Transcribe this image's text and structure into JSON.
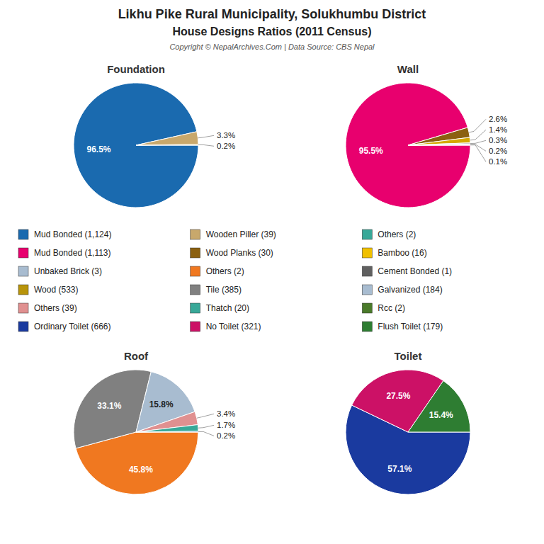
{
  "title": "Likhu Pike Rural Municipality, Solukhumbu District",
  "subtitle": "House Designs Ratios (2011 Census)",
  "annotations": [
    "Copyright © NepalArchives.Com | Data Source: CBS Nepal"
  ],
  "legend_items": [
    {
      "label": "Mud Bonded (1,124)",
      "color": "#1a6aaf"
    },
    {
      "label": "Wooden Piller (39)",
      "color": "#c8a86c"
    },
    {
      "label": "Others (2)",
      "color": "#38a898"
    },
    {
      "label": "Mud Bonded (1,113)",
      "color": "#e8006e"
    },
    {
      "label": "Wood Planks (30)",
      "color": "#8b6010"
    },
    {
      "label": "Bamboo (16)",
      "color": "#f0c000"
    },
    {
      "label": "Unbaked Brick (3)",
      "color": "#a8bcd0"
    },
    {
      "label": "Others (2)",
      "color": "#f07820"
    },
    {
      "label": "Cement Bonded (1)",
      "color": "#606060"
    },
    {
      "label": "Wood (533)",
      "color": "#b8940a"
    },
    {
      "label": "Tile (385)",
      "color": "#808080"
    },
    {
      "label": "Galvanized (184)",
      "color": "#a8bcd0"
    },
    {
      "label": "Others (39)",
      "color": "#e09090"
    },
    {
      "label": "Thatch (20)",
      "color": "#38a898"
    },
    {
      "label": "Rcc (2)",
      "color": "#4a7a2a"
    },
    {
      "label": "Ordinary Toilet (666)",
      "color": "#1a3a9f"
    },
    {
      "label": "No Toilet (321)",
      "color": "#cc1166"
    },
    {
      "label": "Flush Toilet (179)",
      "color": "#2e7d32"
    }
  ],
  "chart_data": [
    {
      "type": "pie",
      "title": "Foundation",
      "values": [
        96.5,
        3.3,
        0.2
      ],
      "value_labels": [
        "96.5%",
        "3.3%",
        "0.2%"
      ],
      "colors": [
        "#1a6aaf",
        "#c8a86c",
        "#b8940a"
      ],
      "data_labels": true
    },
    {
      "type": "pie",
      "title": "Wall",
      "values": [
        95.5,
        2.6,
        1.4,
        0.3,
        0.2,
        0.1
      ],
      "value_labels": [
        "95.5%",
        "2.6%",
        "1.4%",
        "0.3%",
        "0.2%",
        "0.1%"
      ],
      "colors": [
        "#e8006e",
        "#8b6010",
        "#d4a800",
        "#b0b0b0",
        "#606060",
        "#4a6a4a"
      ],
      "data_labels": true
    },
    {
      "type": "pie",
      "title": "Roof",
      "values": [
        45.8,
        33.1,
        15.8,
        3.4,
        1.7,
        0.2
      ],
      "value_labels": [
        "45.8%",
        "33.1%",
        "15.8%",
        "3.4%",
        "1.7%",
        "0.2%"
      ],
      "colors": [
        "#f07820",
        "#808080",
        "#a8bcd0",
        "#e09090",
        "#38a898",
        "#1a6aaf"
      ],
      "data_labels": true
    },
    {
      "type": "pie",
      "title": "Toilet",
      "values": [
        57.1,
        27.5,
        15.4
      ],
      "value_labels": [
        "57.1%",
        "27.5%",
        "15.4%"
      ],
      "colors": [
        "#1a3a9f",
        "#cc1166",
        "#2e7d32"
      ],
      "data_labels": true
    }
  ]
}
